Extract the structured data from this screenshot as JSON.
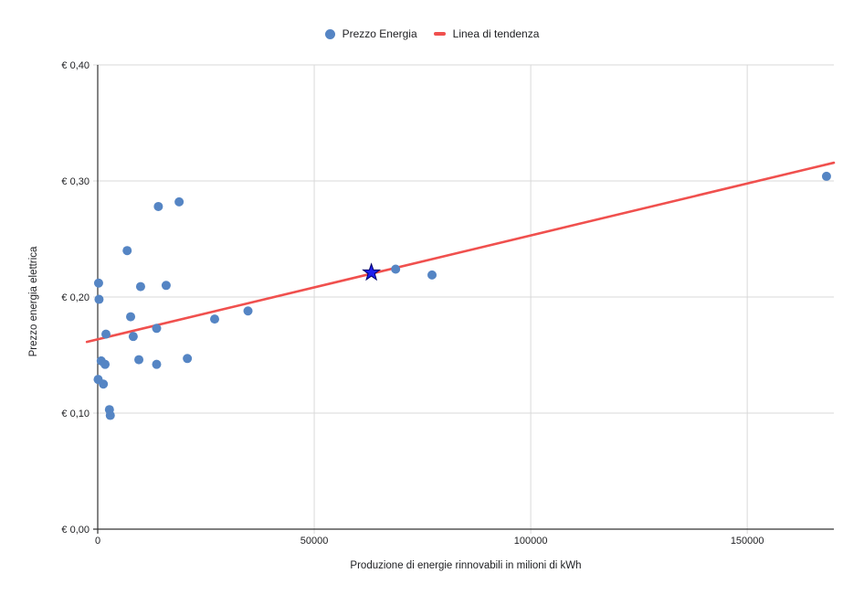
{
  "chart_data": {
    "type": "scatter",
    "title": "",
    "grid": true,
    "legend_position": "top",
    "x_axis": {
      "label": "Produzione di energie rinnovabili in milioni di kWh",
      "tick_labels": [
        "0",
        "50000",
        "100000",
        "150000"
      ],
      "tick_values": [
        0,
        50000,
        100000,
        150000
      ],
      "range": [
        0,
        170000
      ]
    },
    "y_axis": {
      "label": "Prezzo energia elettrica",
      "tick_labels": [
        "€ 0,00",
        "€ 0,10",
        "€ 0,20",
        "€ 0,30",
        "€ 0,40"
      ],
      "tick_values": [
        0,
        0.1,
        0.2,
        0.3,
        0.4
      ],
      "range": [
        0,
        0.4
      ]
    },
    "series": [
      {
        "name": "Prezzo Energia",
        "type": "scatter",
        "color": "#5585c4",
        "points": [
          [
            200,
            0.212
          ],
          [
            300,
            0.198
          ],
          [
            100,
            0.129
          ],
          [
            1300,
            0.125
          ],
          [
            800,
            0.145
          ],
          [
            1700,
            0.142
          ],
          [
            1900,
            0.168
          ],
          [
            2700,
            0.103
          ],
          [
            2900,
            0.098
          ],
          [
            6800,
            0.24
          ],
          [
            7600,
            0.183
          ],
          [
            8200,
            0.166
          ],
          [
            9500,
            0.146
          ],
          [
            9900,
            0.209
          ],
          [
            13600,
            0.173
          ],
          [
            13600,
            0.142
          ],
          [
            14000,
            0.278
          ],
          [
            15800,
            0.21
          ],
          [
            18800,
            0.282
          ],
          [
            20700,
            0.147
          ],
          [
            27000,
            0.181
          ],
          [
            34700,
            0.188
          ],
          [
            68800,
            0.224
          ],
          [
            77200,
            0.219
          ],
          [
            168300,
            0.304
          ]
        ]
      },
      {
        "name": "Linea di tendenza",
        "type": "trendline",
        "color": "#f0504e",
        "points": [
          [
            -2500,
            0.1613
          ],
          [
            170000,
            0.3157
          ]
        ]
      }
    ],
    "highlight_star": {
      "x": 63200,
      "y": 0.221,
      "fill": "#2020ee",
      "stroke": "#000066"
    },
    "style": {
      "grid_color": "#d9d9d9",
      "axis_color": "#333333",
      "text_color": "#202124",
      "background": "#ffffff"
    }
  }
}
